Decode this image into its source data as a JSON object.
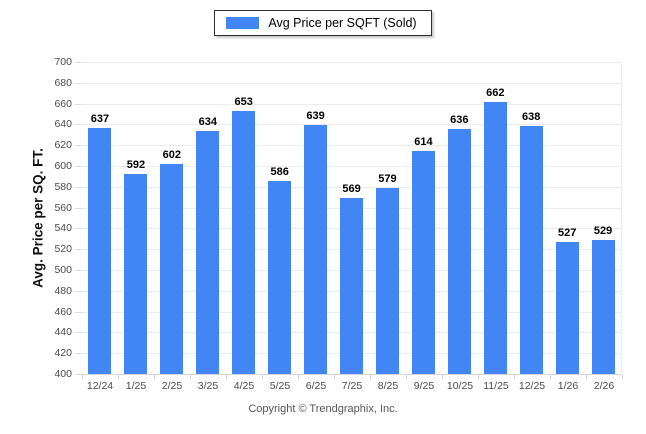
{
  "chart_data": {
    "type": "bar",
    "title": "",
    "categories": [
      "12/24",
      "1/25",
      "2/25",
      "3/25",
      "4/25",
      "5/25",
      "6/25",
      "7/25",
      "8/25",
      "9/25",
      "10/25",
      "11/25",
      "12/25",
      "1/26",
      "2/26"
    ],
    "values": [
      637,
      592,
      602,
      634,
      653,
      586,
      639,
      569,
      579,
      614,
      636,
      662,
      638,
      527,
      529
    ],
    "legend_entries": [
      "Avg Price per SQFT (Sold)"
    ],
    "legend_position": "top-center",
    "xlabel": "",
    "ylabel": "Avg. Price per SQ. FT.",
    "ylim": [
      400,
      700
    ],
    "yticks": [
      400,
      420,
      440,
      460,
      480,
      500,
      520,
      540,
      560,
      580,
      600,
      620,
      640,
      660,
      680,
      700
    ],
    "grid": true,
    "value_labels_shown": true,
    "colors": {
      "bar": "#4285F4",
      "gridline": "#ececec",
      "baseline": "#d6d6d6",
      "axis_text": "#4a4a4a",
      "value_label": "#000000"
    }
  },
  "footer": {
    "copyright": "Copyright © Trendgraphix, Inc."
  }
}
